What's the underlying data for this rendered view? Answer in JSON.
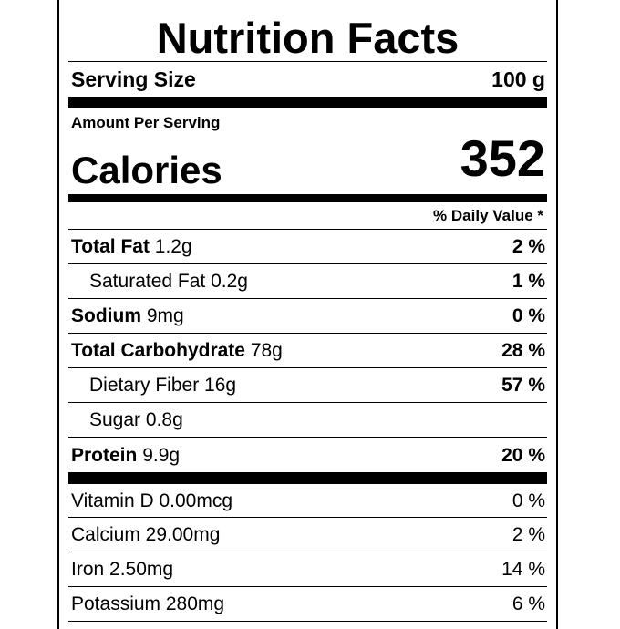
{
  "label": {
    "title": "Nutrition Facts",
    "serving_size_label": "Serving Size",
    "serving_size_value": "100 g",
    "amount_per_serving": "Amount Per Serving",
    "calories_label": "Calories",
    "calories_value": "352",
    "daily_value_header": "% Daily Value *",
    "nutrients": [
      {
        "name": "Total Fat",
        "amount": "1.2g",
        "dv": "2 %"
      },
      {
        "name": "Saturated Fat",
        "amount": "0.2g",
        "dv": "1 %"
      },
      {
        "name": "Sodium",
        "amount": "9mg",
        "dv": "0 %"
      },
      {
        "name": "Total Carbohydrate",
        "amount": "78g",
        "dv": "28 %"
      },
      {
        "name": "Dietary Fiber",
        "amount": "16g",
        "dv": "57 %"
      },
      {
        "name": "Sugar",
        "amount": "0.8g",
        "dv": ""
      },
      {
        "name": "Protein",
        "amount": "9.9g",
        "dv": "20 %"
      }
    ],
    "vitamins": [
      {
        "text": "Vitamin D 0.00mcg",
        "dv": "0 %"
      },
      {
        "text": "Calcium 29.00mg",
        "dv": "2 %"
      },
      {
        "text": "Iron 2.50mg",
        "dv": "14 %"
      },
      {
        "text": "Potassium 280mg",
        "dv": "6 %"
      }
    ]
  }
}
